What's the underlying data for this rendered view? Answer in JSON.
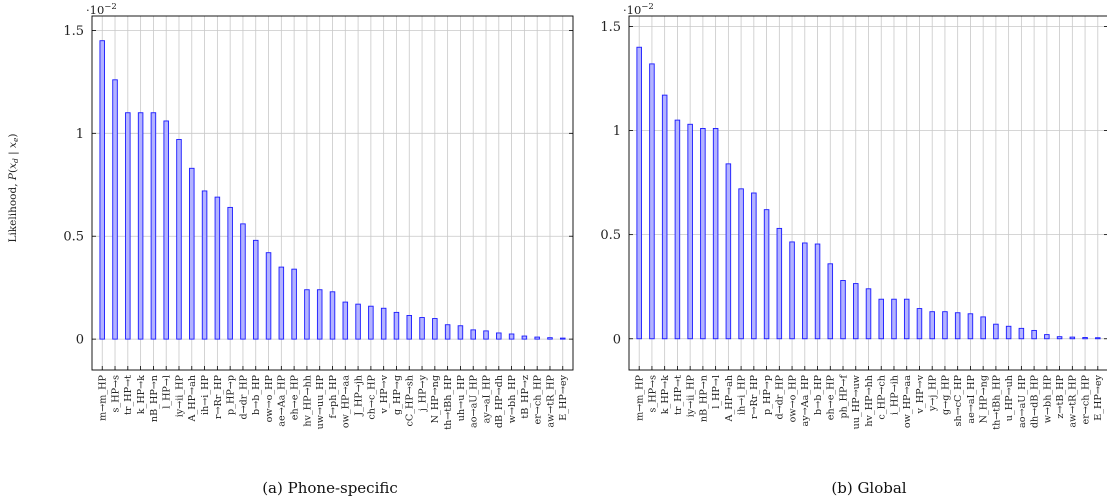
{
  "ylabel_text": "Likelihood, ",
  "ylabel_math": "P(x_d | x_e)",
  "y_exponent": "·10",
  "y_exponent_power": "−2",
  "captions": [
    "(a) Phone-specific",
    "(b) Global"
  ],
  "colors": {
    "bar_fill": "#b3b3ff",
    "bar_stroke": "#1a1aff",
    "grid": "#c8c8c8",
    "axis": "#000000"
  },
  "chart_data": [
    {
      "type": "bar",
      "title": "",
      "caption": "(a) Phone-specific",
      "scale_exponent": -2,
      "ylabel": "Likelihood, P(x_d | x_e)",
      "ylim": [
        -0.15,
        1.57
      ],
      "yticks": [
        0,
        0.5,
        1,
        1.5
      ],
      "ytick_labels": [
        "0",
        "0.5",
        "1",
        "1.5"
      ],
      "grid": true,
      "categories": [
        "m→m_HP",
        "s_HP→s",
        "tr_HP→t",
        "k_HP→k",
        "nB_HP→n",
        "l_HP→l",
        "iy→ii_HP",
        "A_HP→ah",
        "ih→i_HP",
        "r→Rr_HP",
        "p_HP→p",
        "d→dr_HP",
        "b→b_HP",
        "ow→o_HP",
        "ae→Aa_HP",
        "eh→e_HP",
        "hv_HP→hh",
        "uw→uu_HP",
        "f→ph_HP",
        "ow_HP→aa",
        "J_HP→jh",
        "ch→c_HP",
        "v_HP→v",
        "g_HP→g",
        "cC_HP→sh",
        "j_HP→y",
        "N_HP→ng",
        "th→tBh_HP",
        "uh→u_HP",
        "ao→aU_HP",
        "ay→aI_HP",
        "dB_HP→dh",
        "w→bh_HP",
        "tB_HP→z",
        "er→ch_HP",
        "aw→tR_HP",
        "E_HP→ey"
      ],
      "values": [
        1.45,
        1.26,
        1.1,
        1.1,
        1.1,
        1.06,
        0.97,
        0.83,
        0.72,
        0.69,
        0.64,
        0.56,
        0.48,
        0.42,
        0.35,
        0.34,
        0.24,
        0.24,
        0.23,
        0.18,
        0.17,
        0.16,
        0.15,
        0.13,
        0.115,
        0.105,
        0.1,
        0.07,
        0.065,
        0.045,
        0.04,
        0.03,
        0.025,
        0.015,
        0.01,
        0.007,
        0.005
      ]
    },
    {
      "type": "bar",
      "title": "",
      "caption": "(b) Global",
      "scale_exponent": -2,
      "ylabel": "",
      "ylim": [
        -0.15,
        1.55
      ],
      "yticks": [
        0,
        0.5,
        1,
        1.5
      ],
      "ytick_labels": [
        "0",
        "0.5",
        "1",
        "1.5"
      ],
      "grid": true,
      "categories": [
        "m→m_HP",
        "s_HP→s",
        "k_HP→k",
        "tr_HP→t",
        "iy→ii_HP",
        "nB_HP→n",
        "l_HP→l",
        "A_HP→ah",
        "ih→i_HP",
        "r→Rr_HP",
        "p_HP→p",
        "d→dr_HP",
        "ow→o_HP",
        "ay→Aa_HP",
        "b→b_HP",
        "eh→e_HP",
        "ph_HP→f",
        "uu_HP→uw",
        "hv_HP→hh",
        "c_HP→ch",
        "i_HP→ih",
        "ow_HP→aa",
        "v_HP→v",
        "y→j_HP",
        "g→g_HP",
        "sh→cC_HP",
        "ae→aI_HP",
        "N_HP→ng",
        "th→tBh_HP",
        "u_HP→uh",
        "ao→aU_HP",
        "dh→dB_HP",
        "w→bh_HP",
        "z→tB_HP",
        "aw→tR_HP",
        "er→ch_HP",
        "E_HP→ey"
      ],
      "values": [
        1.4,
        1.32,
        1.17,
        1.05,
        1.03,
        1.01,
        1.01,
        0.84,
        0.72,
        0.7,
        0.62,
        0.53,
        0.465,
        0.46,
        0.455,
        0.36,
        0.28,
        0.265,
        0.24,
        0.19,
        0.19,
        0.19,
        0.145,
        0.13,
        0.13,
        0.125,
        0.12,
        0.105,
        0.07,
        0.06,
        0.05,
        0.04,
        0.02,
        0.01,
        0.008,
        0.006,
        0.005
      ]
    }
  ]
}
